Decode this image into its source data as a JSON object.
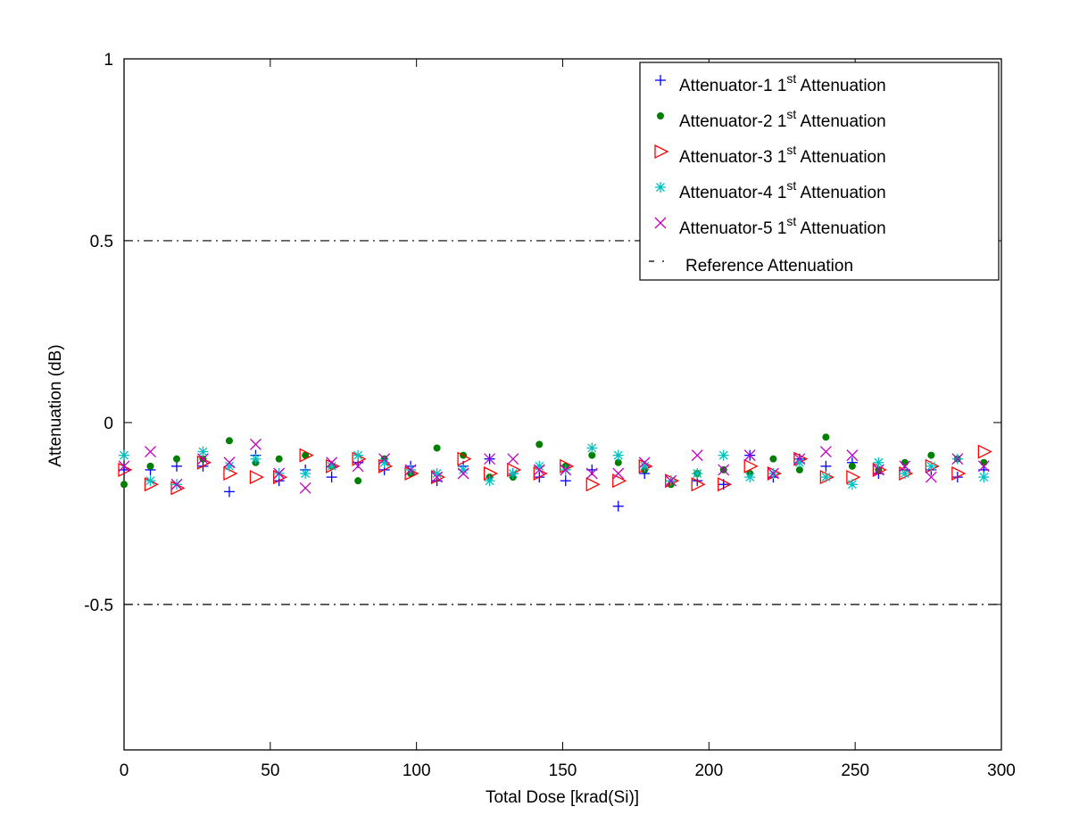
{
  "chart_data": {
    "type": "scatter",
    "title": "",
    "xlabel": "Total Dose [krad(Si)]",
    "ylabel": "Attenuation (dB)",
    "xlim": [
      0,
      300
    ],
    "ylim": [
      -0.9,
      1.0
    ],
    "xticks": [
      0,
      50,
      100,
      150,
      200,
      250,
      300
    ],
    "xtick_labels": [
      "0",
      "50",
      "100",
      "150",
      "200",
      "250",
      "300"
    ],
    "yticks": [
      1,
      0.5,
      0,
      -0.5
    ],
    "ytick_labels": [
      "1",
      "0.5",
      "0",
      "-0.5"
    ],
    "grid": false,
    "legend_position": "top-right",
    "reference_lines": [
      0.5,
      -0.5
    ],
    "reference_label": "Reference Attenuation",
    "x": [
      0,
      9,
      18,
      27,
      36,
      45,
      53,
      62,
      71,
      80,
      89,
      98,
      107,
      116,
      125,
      133,
      142,
      151,
      160,
      169,
      178,
      187,
      196,
      205,
      214,
      222,
      231,
      240,
      249,
      258,
      267,
      276,
      285,
      294
    ],
    "series": [
      {
        "name": "Attenuator-1",
        "sup_prefix": "1",
        "sup": "st",
        "suffix": "Attenuation",
        "marker": "plus",
        "color": "#0000ff",
        "values": [
          -0.13,
          -0.13,
          -0.12,
          -0.12,
          -0.19,
          -0.09,
          -0.16,
          -0.13,
          -0.15,
          -0.11,
          -0.13,
          -0.12,
          -0.16,
          -0.12,
          -0.1,
          -0.14,
          -0.15,
          -0.16,
          -0.13,
          -0.23,
          -0.14,
          -0.16,
          -0.16,
          -0.17,
          -0.09,
          -0.15,
          -0.1,
          -0.12,
          -0.11,
          -0.14,
          -0.13,
          -0.13,
          -0.15,
          -0.13
        ]
      },
      {
        "name": "Attenuator-2",
        "sup_prefix": "1",
        "sup": "st",
        "suffix": "Attenuation",
        "marker": "dot",
        "color": "#008000",
        "values": [
          -0.17,
          -0.12,
          -0.1,
          -0.1,
          -0.05,
          -0.11,
          -0.1,
          -0.09,
          -0.12,
          -0.16,
          -0.1,
          -0.14,
          -0.07,
          -0.09,
          -0.15,
          -0.15,
          -0.06,
          -0.12,
          -0.09,
          -0.11,
          -0.13,
          -0.17,
          -0.14,
          -0.13,
          -0.14,
          -0.1,
          -0.13,
          -0.04,
          -0.12,
          -0.13,
          -0.11,
          -0.09,
          -0.1,
          -0.11
        ]
      },
      {
        "name": "Attenuator-3",
        "sup_prefix": "1",
        "sup": "st",
        "suffix": "Attenuation",
        "marker": "triangle",
        "color": "#ff0000",
        "values": [
          -0.13,
          -0.17,
          -0.18,
          -0.11,
          -0.14,
          -0.15,
          -0.15,
          -0.09,
          -0.12,
          -0.1,
          -0.12,
          -0.14,
          -0.15,
          -0.1,
          -0.14,
          -0.13,
          -0.14,
          -0.12,
          -0.17,
          -0.16,
          -0.12,
          -0.16,
          -0.17,
          -0.17,
          -0.12,
          -0.14,
          -0.1,
          -0.15,
          -0.15,
          -0.13,
          -0.14,
          -0.12,
          -0.14,
          -0.08
        ]
      },
      {
        "name": "Attenuator-4",
        "sup_prefix": "1",
        "sup": "st",
        "suffix": "Attenuation",
        "marker": "asterisk",
        "color": "#00c0c0",
        "values": [
          -0.09,
          -0.16,
          -0.17,
          -0.08,
          -0.12,
          -0.1,
          -0.14,
          -0.14,
          -0.12,
          -0.09,
          -0.11,
          -0.13,
          -0.14,
          -0.13,
          -0.16,
          -0.14,
          -0.12,
          -0.13,
          -0.07,
          -0.09,
          -0.12,
          -0.16,
          -0.14,
          -0.09,
          -0.15,
          -0.14,
          -0.11,
          -0.15,
          -0.17,
          -0.11,
          -0.14,
          -0.12,
          -0.1,
          -0.15
        ]
      },
      {
        "name": "Attenuator-5",
        "sup_prefix": "1",
        "sup": "st",
        "suffix": "Attenuation",
        "marker": "cross",
        "color": "#c000c0",
        "values": [
          -0.12,
          -0.08,
          -0.17,
          -0.1,
          -0.11,
          -0.06,
          -0.14,
          -0.18,
          -0.11,
          -0.12,
          -0.1,
          -0.13,
          -0.15,
          -0.14,
          -0.1,
          -0.1,
          -0.13,
          -0.13,
          -0.14,
          -0.14,
          -0.11,
          -0.16,
          -0.09,
          -0.13,
          -0.09,
          -0.14,
          -0.1,
          -0.08,
          -0.09,
          -0.13,
          -0.12,
          -0.15,
          -0.1,
          -0.12
        ]
      }
    ]
  }
}
